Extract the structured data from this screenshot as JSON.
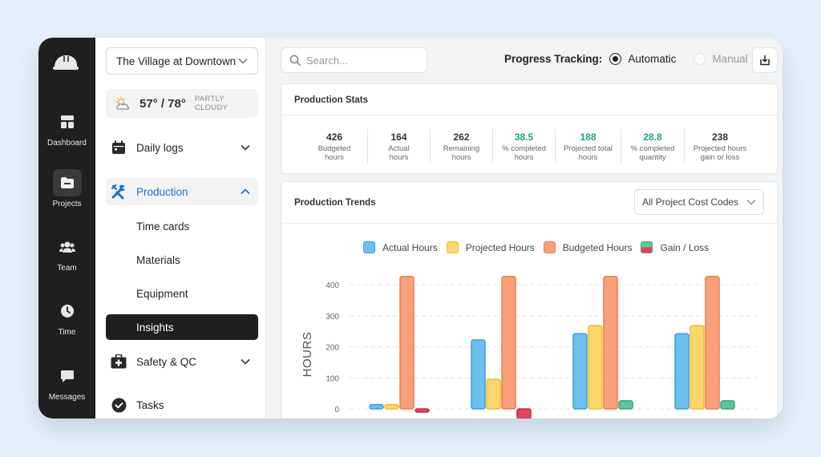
{
  "rail": {
    "items": [
      {
        "label": "Dashboard",
        "icon": "dashboard-icon"
      },
      {
        "label": "Projects",
        "icon": "folder-icon",
        "active": true
      },
      {
        "label": "Team",
        "icon": "team-icon"
      },
      {
        "label": "Time",
        "icon": "clock-icon"
      },
      {
        "label": "Messages",
        "icon": "chat-icon"
      }
    ]
  },
  "nav": {
    "project": "The Village at Downtown",
    "weather": {
      "temp": "57° / 78°",
      "condition": "PARTLY CLOUDY",
      "icon": "partly-cloudy-icon"
    },
    "items": [
      {
        "label": "Daily logs",
        "icon": "calendar-icon"
      },
      {
        "label": "Production",
        "icon": "tools-icon"
      },
      {
        "label": "Safety & QC",
        "icon": "first-aid-icon"
      },
      {
        "label": "Tasks",
        "icon": "check-circle-icon"
      }
    ],
    "production_sub": [
      "Time cards",
      "Materials",
      "Equipment",
      "Insights"
    ],
    "selected_sub": "Insights"
  },
  "header": {
    "search_placeholder": "Search...",
    "tracking_label": "Progress Tracking:",
    "tracking_options": [
      "Automatic",
      "Manual"
    ],
    "tracking_selected": "Automatic"
  },
  "stats": {
    "title": "Production Stats",
    "items": [
      {
        "value": "426",
        "label": "Budgeted hours",
        "green": false
      },
      {
        "value": "164",
        "label": "Actual hours",
        "green": false
      },
      {
        "value": "262",
        "label": "Remaining hours",
        "green": false
      },
      {
        "value": "38.5",
        "label": "% completed hours",
        "green": true
      },
      {
        "value": "188",
        "label": "Projected total hours",
        "green": true
      },
      {
        "value": "28.8",
        "label": "% completed quantity",
        "green": true
      },
      {
        "value": "238",
        "label": "Projected hours gain or loss",
        "green": false
      }
    ]
  },
  "trends": {
    "title": "Production Trends",
    "filter": "All Project Cost Codes"
  },
  "colors": {
    "actual": "#6cc0ee",
    "projected": "#fbd66a",
    "budgeted": "#f9a07a",
    "gain": "#5cc49a",
    "loss": "#e5425c",
    "accent": "#1a6fd1",
    "green": "#19a577"
  },
  "chart_data": {
    "type": "bar",
    "categories": [
      "",
      "",
      "",
      ""
    ],
    "series": [
      {
        "name": "Actual Hours",
        "values": [
          14,
          222,
          242,
          242
        ]
      },
      {
        "name": "Projected Hours",
        "values": [
          14,
          95,
          268,
          268
        ]
      },
      {
        "name": "Budgeted Hours",
        "values": [
          426,
          426,
          426,
          426
        ]
      },
      {
        "name": "Gain / Loss",
        "values": [
          -8,
          -32,
          26,
          26
        ]
      }
    ],
    "ylabel": "HOURS",
    "yticks": [
      0,
      100,
      200,
      300,
      400
    ],
    "ylim": [
      -40,
      450
    ],
    "grid": true,
    "legend": "top"
  }
}
